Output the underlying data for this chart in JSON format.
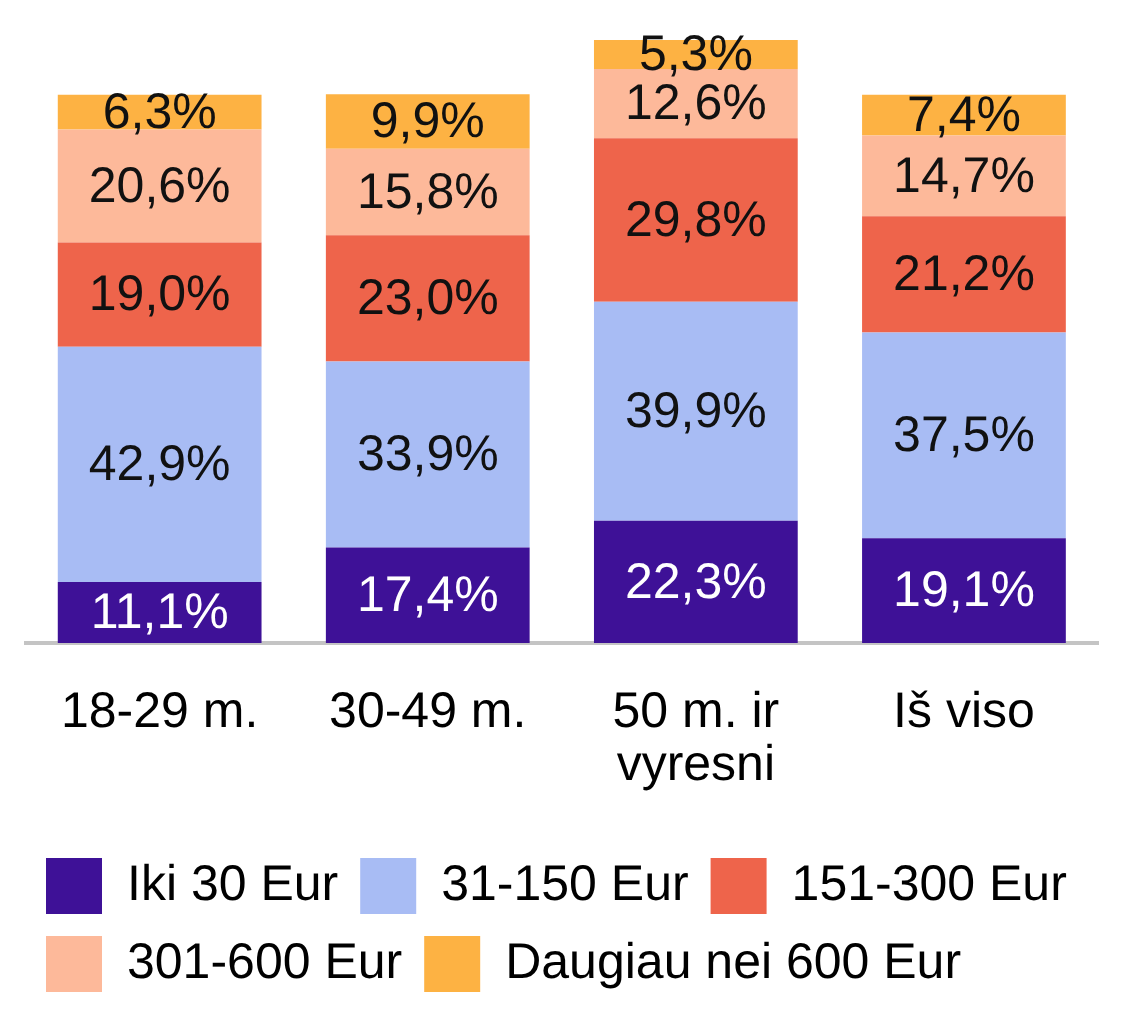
{
  "chart_data": {
    "type": "bar",
    "stacked": true,
    "legend": "bottom",
    "categories": [
      "18-29 m.",
      "30-49 m.",
      "50 m. ir vyresni",
      "Iš viso"
    ],
    "series": [
      {
        "name": "Iki 30 Eur",
        "color": "#3e1197",
        "values": [
          11.1,
          17.4,
          22.3,
          19.1
        ],
        "value_labels": [
          "11,1%",
          "17,4%",
          "22,3%",
          "19,1%"
        ]
      },
      {
        "name": "31-150 Eur",
        "color": "#a8bcf4",
        "values": [
          42.9,
          33.9,
          39.9,
          37.5
        ],
        "value_labels": [
          "42,9%",
          "33,9%",
          "39,9%",
          "37,5%"
        ]
      },
      {
        "name": "151-300 Eur",
        "color": "#ee644b",
        "values": [
          19.0,
          23.0,
          29.8,
          21.2
        ],
        "value_labels": [
          "19,0%",
          "23,0%",
          "29,8%",
          "21,2%"
        ]
      },
      {
        "name": "301-600 Eur",
        "color": "#fdb99a",
        "values": [
          20.6,
          15.8,
          12.6,
          14.7
        ],
        "value_labels": [
          "20,6%",
          "15,8%",
          "12,6%",
          "14,7%"
        ]
      },
      {
        "name": "Daugiau nei 600 Eur",
        "color": "#fdb243",
        "values": [
          6.3,
          9.9,
          5.3,
          7.4
        ],
        "value_labels": [
          "6,3%",
          "9,9%",
          "5,3%",
          "7,4%"
        ]
      }
    ]
  }
}
